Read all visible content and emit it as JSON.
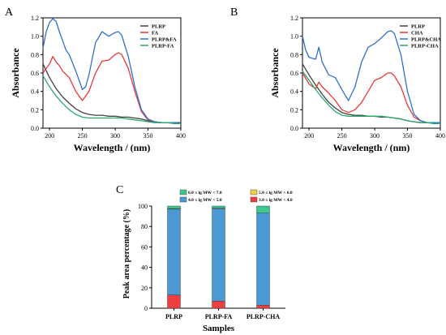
{
  "panels": {
    "a": {
      "letter": "A"
    },
    "b": {
      "letter": "B"
    },
    "c": {
      "letter": "C"
    }
  },
  "chart_data": [
    {
      "id": "A",
      "type": "line",
      "xlabel": "Wavelength / (nm)",
      "ylabel": "Absorbance",
      "xlim": [
        190,
        400
      ],
      "ylim": [
        0,
        1.2
      ],
      "xticks": [
        200,
        250,
        300,
        350,
        400
      ],
      "yticks": [
        0.0,
        0.2,
        0.4,
        0.6,
        0.8,
        1.0,
        1.2
      ],
      "legend_position": "top-right",
      "series": [
        {
          "name": "PLRP",
          "color": "#404040",
          "x": [
            190,
            200,
            210,
            220,
            230,
            240,
            250,
            260,
            270,
            280,
            290,
            300,
            310,
            320,
            330,
            340,
            350,
            360,
            370,
            380,
            390,
            400
          ],
          "y": [
            0.7,
            0.55,
            0.43,
            0.34,
            0.27,
            0.21,
            0.17,
            0.15,
            0.14,
            0.14,
            0.13,
            0.13,
            0.12,
            0.12,
            0.11,
            0.1,
            0.08,
            0.07,
            0.06,
            0.06,
            0.06,
            0.06
          ]
        },
        {
          "name": "FA",
          "color": "#e83838",
          "x": [
            190,
            200,
            205,
            210,
            215,
            220,
            230,
            240,
            250,
            260,
            270,
            280,
            290,
            300,
            305,
            310,
            320,
            330,
            340,
            350,
            360,
            370,
            380,
            390,
            400
          ],
          "y": [
            0.6,
            0.7,
            0.78,
            0.72,
            0.68,
            0.62,
            0.55,
            0.4,
            0.3,
            0.4,
            0.6,
            0.73,
            0.74,
            0.8,
            0.82,
            0.8,
            0.65,
            0.4,
            0.18,
            0.09,
            0.07,
            0.06,
            0.06,
            0.05,
            0.05
          ]
        },
        {
          "name": "PLRP&FA",
          "color": "#2f6fd0",
          "x": [
            190,
            195,
            200,
            205,
            210,
            215,
            220,
            225,
            230,
            240,
            250,
            255,
            260,
            270,
            280,
            290,
            300,
            305,
            310,
            320,
            330,
            340,
            350,
            360,
            370,
            380,
            390,
            400
          ],
          "y": [
            0.87,
            1.05,
            1.15,
            1.19,
            1.16,
            1.05,
            0.95,
            0.85,
            0.8,
            0.62,
            0.42,
            0.45,
            0.58,
            0.93,
            1.05,
            1.0,
            1.04,
            1.05,
            1.01,
            0.78,
            0.45,
            0.2,
            0.1,
            0.07,
            0.06,
            0.06,
            0.06,
            0.05
          ]
        },
        {
          "name": "PLRP-FA",
          "color": "#2aa86b",
          "x": [
            190,
            200,
            210,
            220,
            230,
            240,
            250,
            260,
            270,
            280,
            290,
            300,
            310,
            320,
            330,
            340,
            350,
            360,
            370,
            380,
            390,
            400
          ],
          "y": [
            0.57,
            0.45,
            0.35,
            0.27,
            0.2,
            0.15,
            0.12,
            0.11,
            0.11,
            0.11,
            0.11,
            0.11,
            0.11,
            0.1,
            0.09,
            0.08,
            0.07,
            0.06,
            0.06,
            0.06,
            0.05,
            0.05
          ]
        }
      ]
    },
    {
      "id": "B",
      "type": "line",
      "xlabel": "Wavelength / (nm)",
      "ylabel": "Absorbance",
      "xlim": [
        190,
        400
      ],
      "ylim": [
        0,
        1.2
      ],
      "xticks": [
        200,
        250,
        300,
        350,
        400
      ],
      "yticks": [
        0.0,
        0.2,
        0.4,
        0.6,
        0.8,
        1.0,
        1.2
      ],
      "legend_position": "top-right",
      "series": [
        {
          "name": "PLRP",
          "color": "#404040",
          "x": [
            190,
            200,
            210,
            220,
            230,
            240,
            250,
            260,
            270,
            280,
            290,
            300,
            310,
            320,
            330,
            340,
            350,
            360,
            370,
            380,
            390,
            400
          ],
          "y": [
            0.7,
            0.58,
            0.47,
            0.37,
            0.28,
            0.22,
            0.17,
            0.15,
            0.14,
            0.14,
            0.13,
            0.13,
            0.12,
            0.12,
            0.11,
            0.1,
            0.08,
            0.07,
            0.06,
            0.06,
            0.06,
            0.06
          ]
        },
        {
          "name": "CHA",
          "color": "#e83838",
          "x": [
            190,
            200,
            210,
            215,
            220,
            230,
            240,
            250,
            260,
            270,
            280,
            290,
            300,
            310,
            320,
            325,
            330,
            340,
            350,
            360,
            370,
            380,
            390,
            400
          ],
          "y": [
            0.6,
            0.48,
            0.43,
            0.5,
            0.45,
            0.38,
            0.3,
            0.2,
            0.17,
            0.2,
            0.28,
            0.4,
            0.52,
            0.55,
            0.6,
            0.6,
            0.57,
            0.45,
            0.25,
            0.12,
            0.08,
            0.06,
            0.06,
            0.05
          ]
        },
        {
          "name": "PLRP&CHA",
          "color": "#2f6fd0",
          "x": [
            190,
            195,
            200,
            210,
            215,
            220,
            230,
            240,
            250,
            260,
            270,
            280,
            290,
            300,
            310,
            320,
            325,
            330,
            340,
            350,
            360,
            370,
            380,
            390,
            400
          ],
          "y": [
            1.0,
            0.85,
            0.77,
            0.75,
            0.88,
            0.72,
            0.58,
            0.55,
            0.42,
            0.3,
            0.45,
            0.72,
            0.88,
            0.92,
            0.98,
            1.05,
            1.06,
            1.03,
            0.8,
            0.4,
            0.15,
            0.08,
            0.06,
            0.06,
            0.06
          ]
        },
        {
          "name": "PLRP-CHA",
          "color": "#2aa86b",
          "x": [
            190,
            200,
            210,
            220,
            230,
            240,
            250,
            260,
            270,
            280,
            290,
            300,
            310,
            320,
            330,
            340,
            350,
            360,
            370,
            380,
            390,
            400
          ],
          "y": [
            0.62,
            0.52,
            0.42,
            0.33,
            0.25,
            0.18,
            0.14,
            0.13,
            0.13,
            0.13,
            0.13,
            0.13,
            0.13,
            0.12,
            0.11,
            0.1,
            0.08,
            0.07,
            0.06,
            0.06,
            0.05,
            0.05
          ]
        }
      ]
    },
    {
      "id": "C",
      "type": "bar",
      "stacked": true,
      "xlabel": "Samples",
      "ylabel": "Peak area percentage (%)",
      "ylim": [
        0,
        100
      ],
      "yticks": [
        0,
        20,
        40,
        60,
        80,
        100
      ],
      "categories": [
        "PLRP",
        "PLRP-FA",
        "PLRP-CHA"
      ],
      "legend_position": "top",
      "series": [
        {
          "name": "3.0 ≤ lg MW < 4.0",
          "color": "#ee4040",
          "values": [
            13,
            7,
            3
          ]
        },
        {
          "name": "4.0 ≤ lg MW < 5.0",
          "color": "#4a98d4",
          "values": [
            84,
            90.5,
            90
          ]
        },
        {
          "name": "5.0 ≤ lg MW < 6.0",
          "color": "#f2d04a",
          "values": [
            0.5,
            0.5,
            0
          ]
        },
        {
          "name": "6.0 ≤ lg MW < 7.0",
          "color": "#3cc890",
          "values": [
            2.5,
            2,
            7
          ]
        }
      ],
      "legend_order": [
        3,
        2,
        1,
        0
      ]
    }
  ]
}
